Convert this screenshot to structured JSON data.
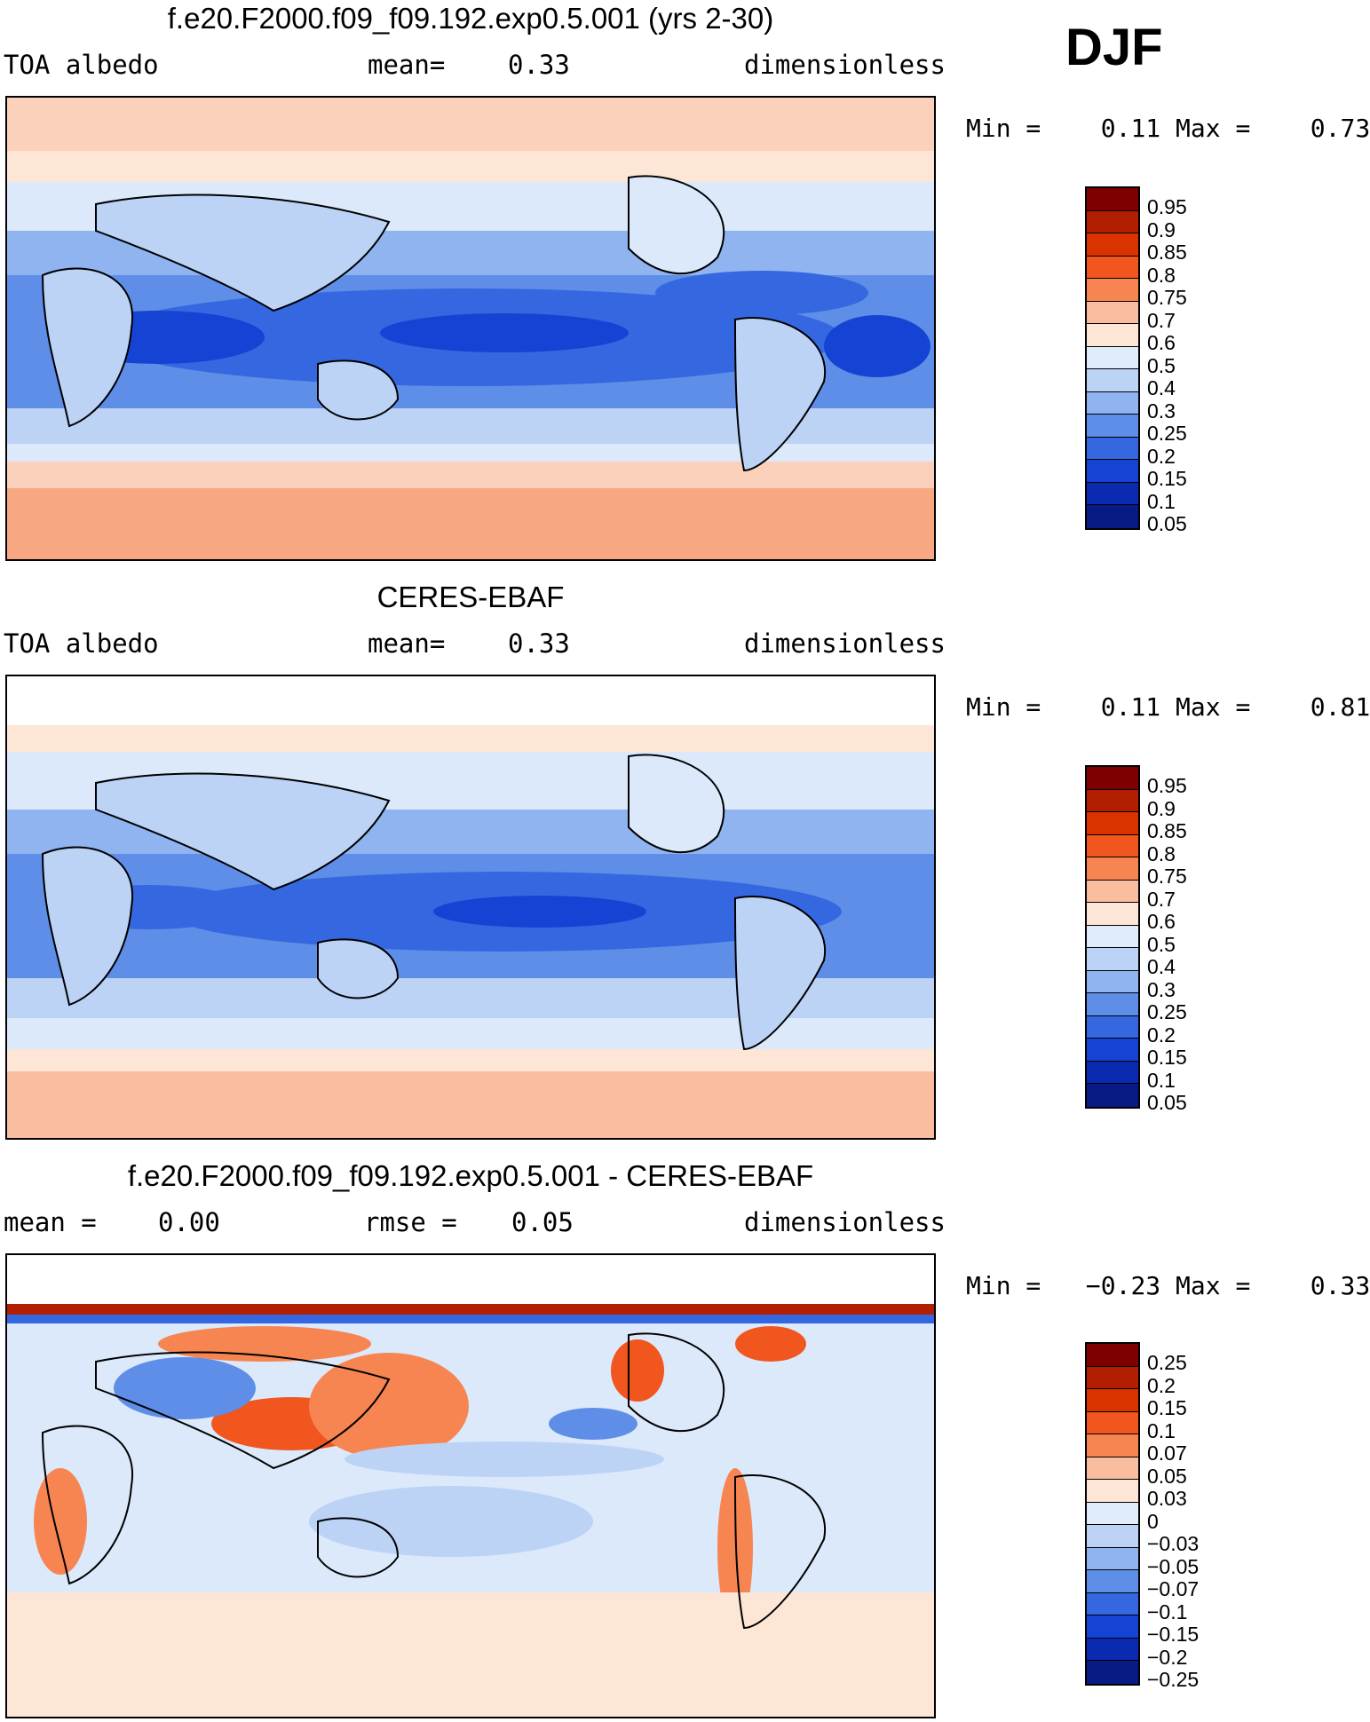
{
  "season": "DJF",
  "panels": [
    {
      "title": "f.e20.F2000.f09_f09.192.exp0.5.001 (yrs 2-30)",
      "left_label": "TOA albedo",
      "mid_label": "mean=",
      "mid_value": "0.33",
      "units": "dimensionless",
      "min_label": "Min =",
      "min_value": "0.11",
      "max_label": "Max =",
      "max_value": "0.73",
      "colorbar": {
        "labels": [
          "0.95",
          "0.9",
          "0.85",
          "0.8",
          "0.75",
          "0.7",
          "0.6",
          "0.5",
          "0.4",
          "0.3",
          "0.25",
          "0.2",
          "0.15",
          "0.1",
          "0.05"
        ],
        "colors": [
          "#7f0000",
          "#b21e00",
          "#d93300",
          "#f0561e",
          "#f78552",
          "#fbbda0",
          "#fde6d6",
          "#e0ecfa",
          "#bcd3f6",
          "#8fb4ef",
          "#5f8ee8",
          "#3568e0",
          "#1544d4",
          "#0a2ab0",
          "#071a86"
        ]
      }
    },
    {
      "title": "CERES-EBAF",
      "left_label": "TOA albedo",
      "mid_label": "mean=",
      "mid_value": "0.33",
      "units": "dimensionless",
      "min_label": "Min =",
      "min_value": "0.11",
      "max_label": "Max =",
      "max_value": "0.81",
      "colorbar": {
        "labels": [
          "0.95",
          "0.9",
          "0.85",
          "0.8",
          "0.75",
          "0.7",
          "0.6",
          "0.5",
          "0.4",
          "0.3",
          "0.25",
          "0.2",
          "0.15",
          "0.1",
          "0.05"
        ],
        "colors": [
          "#7f0000",
          "#b21e00",
          "#d93300",
          "#f0561e",
          "#f78552",
          "#fbbda0",
          "#fde6d6",
          "#e0ecfa",
          "#bcd3f6",
          "#8fb4ef",
          "#5f8ee8",
          "#3568e0",
          "#1544d4",
          "#0a2ab0",
          "#071a86"
        ]
      }
    },
    {
      "title": "f.e20.F2000.f09_f09.192.exp0.5.001 - CERES-EBAF",
      "left_label": "mean =",
      "left_value": "0.00",
      "mid_label": "rmse =",
      "mid_value": "0.05",
      "units": "dimensionless",
      "min_label": "Min =",
      "min_value": "−0.23",
      "max_label": "Max =",
      "max_value": "0.33",
      "colorbar": {
        "labels": [
          "0.25",
          "0.2",
          "0.15",
          "0.1",
          "0.07",
          "0.05",
          "0.03",
          "0",
          "−0.03",
          "−0.05",
          "−0.07",
          "−0.1",
          "−0.15",
          "−0.2",
          "−0.25"
        ],
        "colors": [
          "#7f0000",
          "#b21e00",
          "#d93300",
          "#f0561e",
          "#f78552",
          "#fbbda0",
          "#fde6d6",
          "#e0ecfa",
          "#bcd3f6",
          "#8fb4ef",
          "#5f8ee8",
          "#3568e0",
          "#1544d4",
          "#0a2ab0",
          "#071a86"
        ]
      }
    }
  ]
}
